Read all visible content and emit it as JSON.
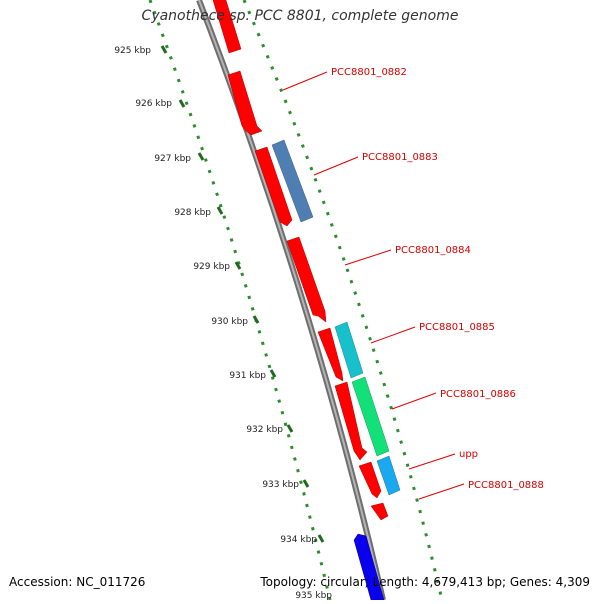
{
  "title": "Cyanothece sp. PCC 8801, complete genome",
  "footer": {
    "accession": "Accession: NC_011726",
    "topology": "Topology: circular; Length: 4,679,413 bp; Genes: 4,309"
  },
  "scale_labels": [
    "925 kbp",
    "926 kbp",
    "927 kbp",
    "928 kbp",
    "929 kbp",
    "930 kbp",
    "931 kbp",
    "932 kbp",
    "933 kbp",
    "934 kbp",
    "935 kbp"
  ],
  "gene_labels": [
    "PCC8801_0882",
    "PCC8801_0883",
    "PCC8801_0884",
    "PCC8801_0885",
    "PCC8801_0886",
    "upp",
    "PCC8801_0888"
  ],
  "colors": {
    "backbone": "#8c8c8c",
    "dotted_guides": "#2e8b2e",
    "label_text": "#d40000",
    "leader_line": "#e00000",
    "cds_red": "#ff0000",
    "steel_blue": "#4f7fb2",
    "cyan": "#18c0cc",
    "green": "#14e07a",
    "light_blue": "#1aa8ee",
    "dark_blue": "#0a00ee"
  }
}
